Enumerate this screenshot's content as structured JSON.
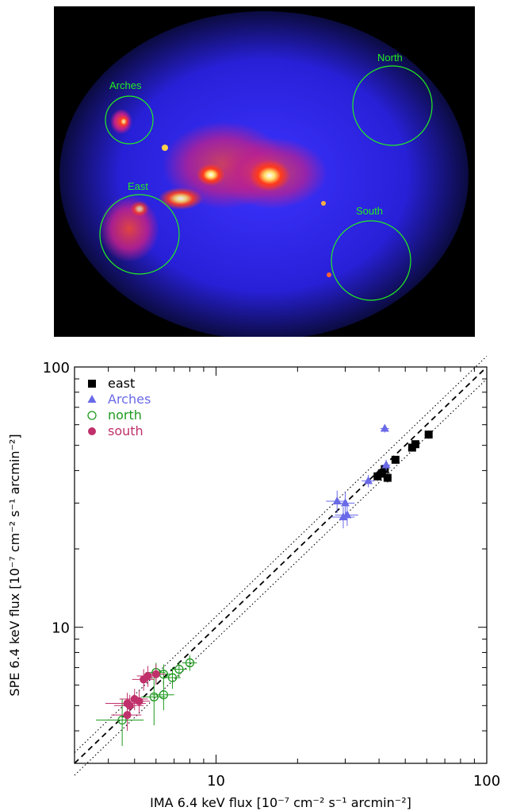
{
  "image_panel": {
    "regions": [
      {
        "name": "Arches",
        "color": "#22ee22"
      },
      {
        "name": "North",
        "color": "#22ee22"
      },
      {
        "name": "East",
        "color": "#22ee22"
      },
      {
        "name": "South",
        "color": "#22ee22"
      }
    ]
  },
  "chart_data": {
    "type": "scatter",
    "xscale": "log",
    "yscale": "log",
    "xlim": [
      3,
      100
    ],
    "ylim": [
      3,
      100
    ],
    "xlabel": "IMA 6.4 keV flux [10⁻⁷ cm⁻² s⁻¹ arcmin⁻²]",
    "ylabel": "SPE 6.4 keV flux [10⁻⁷ cm⁻² s⁻¹ arcmin⁻²]",
    "x_ticks": [
      "10",
      "100"
    ],
    "y_ticks": [
      "10",
      "100"
    ],
    "legend_position": "top-left",
    "lines": [
      {
        "style": "dashed",
        "slope": 1.0
      },
      {
        "style": "dotted",
        "slope": 1.1
      },
      {
        "style": "dotted",
        "slope": 0.9
      }
    ],
    "series": [
      {
        "name": "east",
        "marker": "square-filled",
        "color": "#000000",
        "points": [
          {
            "x": 39.5,
            "y": 38.0,
            "xe": 1.5,
            "ye": 1.5
          },
          {
            "x": 41.0,
            "y": 39.0,
            "xe": 1.5,
            "ye": 1.5
          },
          {
            "x": 42.0,
            "y": 40.5,
            "xe": 1.5,
            "ye": 1.5
          },
          {
            "x": 43.0,
            "y": 37.5,
            "xe": 1.5,
            "ye": 1.5
          },
          {
            "x": 46.0,
            "y": 44.0,
            "xe": 1.5,
            "ye": 1.5
          },
          {
            "x": 53.0,
            "y": 49.0,
            "xe": 1.5,
            "ye": 1.5
          },
          {
            "x": 54.5,
            "y": 50.5,
            "xe": 1.5,
            "ye": 1.5
          },
          {
            "x": 61.0,
            "y": 55.0,
            "xe": 2.0,
            "ye": 2.0
          }
        ]
      },
      {
        "name": "Arches",
        "marker": "triangle-filled",
        "color": "#6a6ae8",
        "points": [
          {
            "x": 42.0,
            "y": 58.0,
            "xe": 1.5,
            "ye": 2.0
          },
          {
            "x": 42.5,
            "y": 42.0,
            "xe": 1.5,
            "ye": 2.0
          },
          {
            "x": 36.5,
            "y": 36.5,
            "xe": 2.0,
            "ye": 2.0
          },
          {
            "x": 28.0,
            "y": 30.5,
            "xe": 2.5,
            "ye": 3.0
          },
          {
            "x": 30.0,
            "y": 30.0,
            "xe": 2.5,
            "ye": 3.0
          },
          {
            "x": 30.5,
            "y": 27.0,
            "xe": 3.0,
            "ye": 2.5
          },
          {
            "x": 29.5,
            "y": 26.5,
            "xe": 3.0,
            "ye": 2.5
          }
        ]
      },
      {
        "name": "north",
        "marker": "circle-open",
        "color": "#1f9a1f",
        "points": [
          {
            "x": 4.5,
            "y": 4.4,
            "xe": 0.9,
            "ye": 0.9
          },
          {
            "x": 5.9,
            "y": 5.4,
            "xe": 0.6,
            "ye": 1.2
          },
          {
            "x": 6.4,
            "y": 5.5,
            "xe": 0.6,
            "ye": 0.7
          },
          {
            "x": 6.4,
            "y": 6.6,
            "xe": 0.5,
            "ye": 0.6
          },
          {
            "x": 6.9,
            "y": 6.4,
            "xe": 0.5,
            "ye": 0.6
          },
          {
            "x": 7.3,
            "y": 6.9,
            "xe": 0.5,
            "ye": 0.5
          },
          {
            "x": 8.0,
            "y": 7.3,
            "xe": 0.5,
            "ye": 0.5
          },
          {
            "x": 6.0,
            "y": 6.7,
            "xe": 0.5,
            "ye": 0.6
          }
        ]
      },
      {
        "name": "south",
        "marker": "circle-filled",
        "color": "#c0306a",
        "points": [
          {
            "x": 4.7,
            "y": 4.6,
            "xe": 0.6,
            "ye": 0.6
          },
          {
            "x": 4.7,
            "y": 5.1,
            "xe": 0.8,
            "ye": 0.5
          },
          {
            "x": 4.8,
            "y": 5.0,
            "xe": 0.6,
            "ye": 0.5
          },
          {
            "x": 5.0,
            "y": 5.3,
            "xe": 0.6,
            "ye": 0.5
          },
          {
            "x": 5.2,
            "y": 5.2,
            "xe": 0.5,
            "ye": 0.5
          },
          {
            "x": 5.4,
            "y": 6.3,
            "xe": 0.5,
            "ye": 0.6
          },
          {
            "x": 5.6,
            "y": 6.5,
            "xe": 0.5,
            "ye": 0.6
          },
          {
            "x": 6.0,
            "y": 6.6,
            "xe": 0.5,
            "ye": 0.6
          }
        ]
      }
    ]
  }
}
